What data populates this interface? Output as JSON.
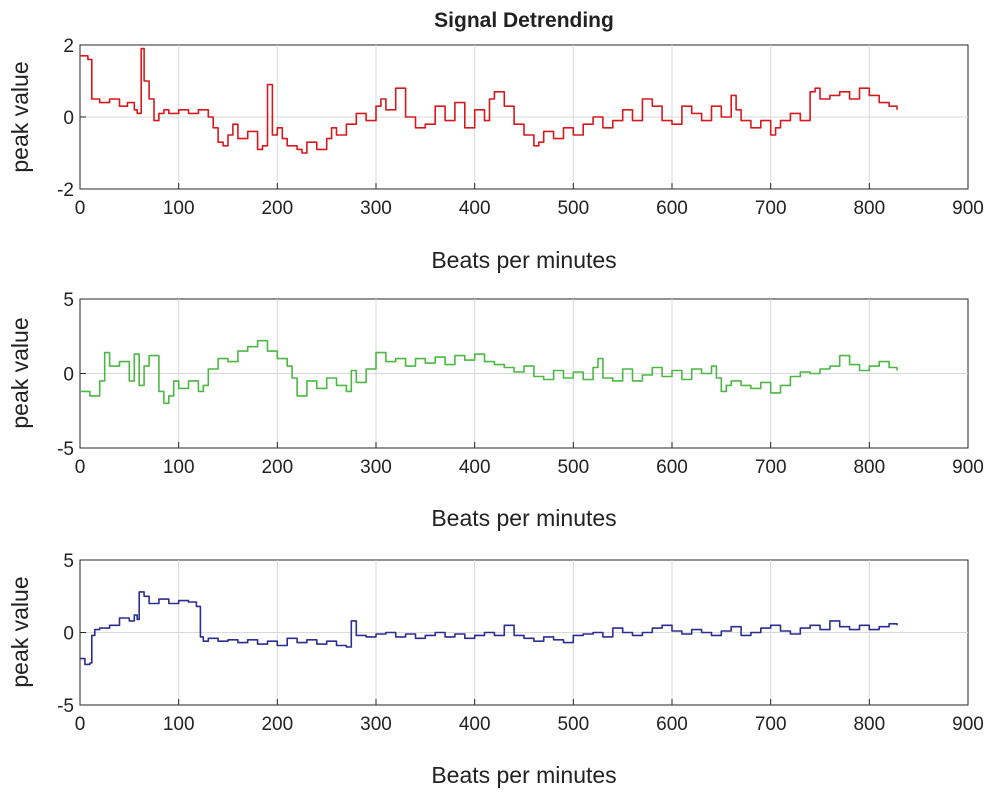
{
  "figure": {
    "title": "Signal Detrending"
  },
  "chart_data": [
    {
      "type": "line",
      "title": "Signal Detrending",
      "xlabel": "Beats per minutes",
      "ylabel": "peak value",
      "xlim": [
        0,
        900
      ],
      "ylim": [
        -2,
        2
      ],
      "xticks": [
        0,
        100,
        200,
        300,
        400,
        500,
        600,
        700,
        800,
        900
      ],
      "yticks": [
        -2,
        0,
        2
      ],
      "grid": true,
      "color": "#d7191c",
      "series": [
        {
          "name": "red",
          "x": [
            0,
            8,
            12,
            20,
            30,
            40,
            48,
            55,
            58,
            62,
            65,
            70,
            75,
            80,
            85,
            90,
            100,
            110,
            120,
            130,
            135,
            140,
            145,
            150,
            155,
            160,
            170,
            180,
            185,
            190,
            195,
            200,
            205,
            210,
            220,
            225,
            230,
            240,
            250,
            255,
            260,
            270,
            280,
            290,
            300,
            305,
            310,
            320,
            330,
            340,
            350,
            360,
            370,
            380,
            390,
            400,
            410,
            415,
            420,
            430,
            440,
            450,
            460,
            465,
            470,
            480,
            490,
            500,
            510,
            520,
            530,
            540,
            550,
            560,
            570,
            580,
            590,
            600,
            610,
            620,
            630,
            640,
            650,
            660,
            665,
            670,
            680,
            690,
            700,
            705,
            710,
            720,
            730,
            740,
            745,
            750,
            760,
            770,
            780,
            790,
            800,
            810,
            820,
            828
          ],
          "y": [
            1.7,
            1.6,
            0.5,
            0.4,
            0.5,
            0.3,
            0.4,
            0.2,
            0.1,
            1.9,
            1.0,
            0.5,
            -0.1,
            0.1,
            0.2,
            0.1,
            0.2,
            0.1,
            0.2,
            0.0,
            -0.3,
            -0.7,
            -0.8,
            -0.5,
            -0.2,
            -0.6,
            -0.4,
            -0.9,
            -0.8,
            0.9,
            -0.5,
            -0.3,
            -0.6,
            -0.8,
            -0.9,
            -1.0,
            -0.7,
            -0.9,
            -0.6,
            -0.3,
            -0.5,
            -0.2,
            0.1,
            -0.1,
            0.3,
            0.5,
            0.2,
            0.8,
            0.0,
            -0.3,
            -0.2,
            0.3,
            -0.1,
            0.4,
            -0.3,
            0.2,
            -0.1,
            0.5,
            0.7,
            0.3,
            -0.2,
            -0.5,
            -0.8,
            -0.7,
            -0.4,
            -0.6,
            -0.3,
            -0.5,
            -0.2,
            0.0,
            -0.3,
            -0.1,
            0.2,
            -0.1,
            0.5,
            0.3,
            -0.1,
            -0.2,
            0.3,
            0.1,
            -0.1,
            0.3,
            0.0,
            0.6,
            0.2,
            -0.1,
            -0.3,
            -0.1,
            -0.5,
            -0.3,
            -0.1,
            0.1,
            -0.1,
            0.7,
            0.8,
            0.5,
            0.6,
            0.7,
            0.5,
            0.8,
            0.6,
            0.4,
            0.3,
            0.2
          ]
        }
      ]
    },
    {
      "type": "line",
      "title": "",
      "xlabel": "Beats per minutes",
      "ylabel": "peak value",
      "xlim": [
        0,
        900
      ],
      "ylim": [
        -5,
        5
      ],
      "xticks": [
        0,
        100,
        200,
        300,
        400,
        500,
        600,
        700,
        800,
        900
      ],
      "yticks": [
        -5,
        0,
        5
      ],
      "grid": true,
      "color": "#4cb843",
      "series": [
        {
          "name": "green",
          "x": [
            0,
            10,
            20,
            25,
            30,
            40,
            50,
            55,
            60,
            65,
            70,
            80,
            85,
            90,
            95,
            100,
            110,
            120,
            125,
            130,
            140,
            150,
            160,
            170,
            180,
            190,
            200,
            210,
            215,
            220,
            230,
            240,
            250,
            260,
            270,
            275,
            280,
            290,
            300,
            310,
            320,
            330,
            340,
            350,
            360,
            370,
            380,
            390,
            400,
            410,
            420,
            430,
            440,
            450,
            460,
            470,
            480,
            490,
            500,
            510,
            520,
            525,
            530,
            540,
            550,
            560,
            570,
            580,
            590,
            600,
            610,
            620,
            630,
            640,
            645,
            650,
            655,
            660,
            670,
            680,
            690,
            700,
            710,
            720,
            730,
            740,
            750,
            760,
            770,
            780,
            790,
            800,
            810,
            820,
            828
          ],
          "y": [
            -1.2,
            -1.5,
            -0.5,
            1.4,
            0.5,
            0.8,
            -0.5,
            1.3,
            -0.8,
            0.5,
            1.2,
            -1.2,
            -2.0,
            -1.5,
            -0.5,
            -1.0,
            -0.5,
            -1.2,
            -0.8,
            0.3,
            1.0,
            0.8,
            1.5,
            1.8,
            2.2,
            1.5,
            1.0,
            0.5,
            -0.3,
            -1.5,
            -0.5,
            -1.0,
            -0.3,
            -0.8,
            -1.2,
            0.2,
            -0.6,
            0.3,
            1.4,
            0.8,
            1.0,
            0.5,
            1.0,
            0.7,
            1.1,
            0.6,
            1.2,
            0.9,
            1.3,
            0.8,
            0.6,
            0.4,
            0.1,
            0.5,
            -0.2,
            -0.4,
            0.2,
            -0.3,
            0.1,
            -0.4,
            0.4,
            1.0,
            -0.3,
            -0.5,
            0.3,
            -0.5,
            -0.1,
            0.4,
            -0.2,
            0.2,
            -0.4,
            0.3,
            0.0,
            0.5,
            -0.3,
            -1.2,
            -0.8,
            -0.5,
            -0.8,
            -1.0,
            -0.6,
            -1.3,
            -0.8,
            -0.2,
            0.1,
            0.0,
            0.3,
            0.5,
            1.2,
            0.6,
            0.2,
            0.5,
            0.8,
            0.4,
            0.2
          ]
        }
      ]
    },
    {
      "type": "line",
      "title": "",
      "xlabel": "Beats per minutes",
      "ylabel": "peak value",
      "xlim": [
        0,
        900
      ],
      "ylim": [
        -5,
        5
      ],
      "xticks": [
        0,
        100,
        200,
        300,
        400,
        500,
        600,
        700,
        800,
        900
      ],
      "yticks": [
        -5,
        0,
        5
      ],
      "grid": true,
      "color": "#2b2f8f",
      "series": [
        {
          "name": "blue",
          "x": [
            0,
            5,
            10,
            12,
            15,
            20,
            30,
            40,
            50,
            55,
            58,
            60,
            65,
            70,
            80,
            90,
            100,
            110,
            118,
            122,
            125,
            130,
            140,
            150,
            160,
            170,
            180,
            190,
            200,
            210,
            220,
            230,
            240,
            250,
            260,
            270,
            275,
            280,
            290,
            300,
            310,
            320,
            330,
            340,
            350,
            360,
            370,
            380,
            390,
            400,
            410,
            420,
            430,
            440,
            450,
            460,
            470,
            480,
            490,
            500,
            510,
            520,
            530,
            540,
            550,
            560,
            570,
            580,
            590,
            600,
            610,
            620,
            630,
            640,
            650,
            660,
            670,
            680,
            690,
            700,
            710,
            720,
            730,
            740,
            750,
            760,
            770,
            780,
            790,
            800,
            810,
            820,
            828
          ],
          "y": [
            -1.8,
            -2.2,
            -2.1,
            -0.2,
            0.2,
            0.3,
            0.5,
            1.0,
            0.8,
            1.2,
            0.9,
            2.8,
            2.5,
            2.0,
            2.3,
            2.0,
            2.2,
            2.1,
            1.8,
            -0.3,
            -0.6,
            -0.4,
            -0.6,
            -0.5,
            -0.7,
            -0.5,
            -0.8,
            -0.6,
            -0.9,
            -0.4,
            -0.7,
            -0.5,
            -0.8,
            -0.6,
            -0.9,
            -1.0,
            0.8,
            -0.2,
            -0.3,
            -0.1,
            0.0,
            -0.3,
            -0.1,
            -0.4,
            -0.2,
            0.0,
            -0.3,
            -0.1,
            -0.4,
            -0.2,
            0.0,
            -0.2,
            0.5,
            -0.2,
            -0.4,
            -0.6,
            -0.3,
            -0.5,
            -0.7,
            -0.2,
            -0.1,
            0.0,
            -0.3,
            0.3,
            0.0,
            -0.2,
            0.0,
            0.3,
            0.5,
            0.1,
            -0.1,
            0.2,
            0.0,
            -0.2,
            0.1,
            0.4,
            -0.2,
            0.0,
            0.3,
            0.5,
            0.1,
            -0.1,
            0.3,
            0.5,
            0.2,
            0.8,
            0.4,
            0.2,
            0.5,
            0.2,
            0.4,
            0.6,
            0.5
          ]
        }
      ]
    }
  ]
}
